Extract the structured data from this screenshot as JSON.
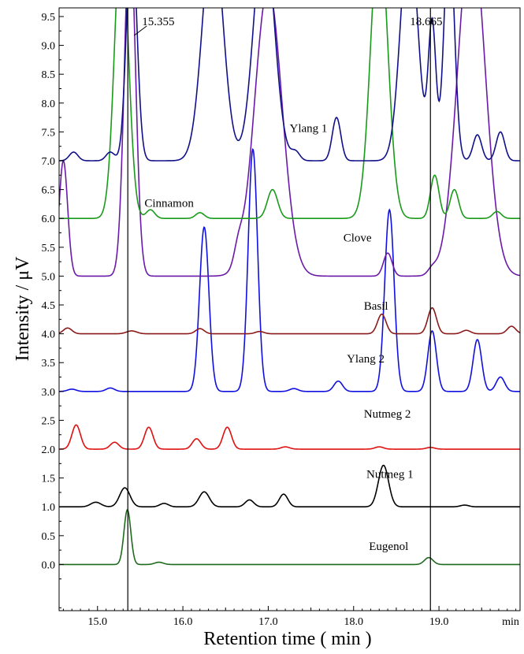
{
  "chart_data": {
    "type": "line",
    "title": "",
    "xlabel": "Retention time ( min )",
    "ylabel": "Intensity / μV",
    "xlim": [
      14.55,
      19.95
    ],
    "ylim": [
      -0.8,
      9.65
    ],
    "x_ticks": [
      {
        "value": 15.0,
        "label": "15.0"
      },
      {
        "value": 16.0,
        "label": "16.0"
      },
      {
        "value": 17.0,
        "label": "17.0"
      },
      {
        "value": 18.0,
        "label": "18.0"
      },
      {
        "value": 19.0,
        "label": "19.0"
      }
    ],
    "x_unit_label": "min",
    "y_ticks": [
      {
        "value": 0.0,
        "label": "0.0"
      },
      {
        "value": 0.5,
        "label": "0.5"
      },
      {
        "value": 1.0,
        "label": "1.0"
      },
      {
        "value": 1.5,
        "label": "1.5"
      },
      {
        "value": 2.0,
        "label": "2.0"
      },
      {
        "value": 2.5,
        "label": "2.5"
      },
      {
        "value": 3.0,
        "label": "3.0"
      },
      {
        "value": 3.5,
        "label": "3.5"
      },
      {
        "value": 4.0,
        "label": "4.0"
      },
      {
        "value": 4.5,
        "label": "4.5"
      },
      {
        "value": 5.0,
        "label": "5.0"
      },
      {
        "value": 5.5,
        "label": "5.5"
      },
      {
        "value": 6.0,
        "label": "6.0"
      },
      {
        "value": 6.5,
        "label": "6.5"
      },
      {
        "value": 7.0,
        "label": "7.0"
      },
      {
        "value": 7.5,
        "label": "7.5"
      },
      {
        "value": 8.0,
        "label": "8.0"
      },
      {
        "value": 8.5,
        "label": "8.5"
      },
      {
        "value": 9.0,
        "label": "9.0"
      },
      {
        "value": 9.5,
        "label": "9.5"
      }
    ],
    "grid": false,
    "legend": "none",
    "annotations": [
      {
        "label": "15.355",
        "x": 15.355
      },
      {
        "label": "18.665",
        "x": 18.9
      }
    ],
    "series": [
      {
        "name": "Eugenol",
        "color": "#1e6b1e",
        "baseline": 0.0,
        "label_at": [
          18.18,
          0.25
        ],
        "peaks": [
          [
            15.35,
            0.95,
            0.04
          ],
          [
            15.72,
            0.04,
            0.05
          ],
          [
            18.88,
            0.12,
            0.05
          ]
        ]
      },
      {
        "name": "Nutmeg 1",
        "color": "#000000",
        "baseline": 1.0,
        "label_at": [
          18.15,
          1.5
        ],
        "peaks": [
          [
            14.98,
            0.08,
            0.06
          ],
          [
            15.32,
            0.33,
            0.06
          ],
          [
            15.78,
            0.06,
            0.05
          ],
          [
            16.25,
            0.26,
            0.06
          ],
          [
            16.78,
            0.12,
            0.05
          ],
          [
            17.18,
            0.22,
            0.05
          ],
          [
            18.35,
            0.72,
            0.06
          ],
          [
            19.3,
            0.03,
            0.05
          ]
        ]
      },
      {
        "name": "Nutmeg 2",
        "color": "#e01010",
        "baseline": 2.0,
        "label_at": [
          18.12,
          2.55
        ],
        "peaks": [
          [
            14.75,
            0.42,
            0.05
          ],
          [
            15.2,
            0.12,
            0.05
          ],
          [
            15.6,
            0.38,
            0.05
          ],
          [
            16.16,
            0.18,
            0.05
          ],
          [
            16.52,
            0.38,
            0.05
          ],
          [
            17.2,
            0.04,
            0.05
          ],
          [
            18.3,
            0.04,
            0.05
          ],
          [
            18.9,
            0.03,
            0.05
          ]
        ]
      },
      {
        "name": "Ylang 2",
        "color": "#1010e0",
        "baseline": 3.0,
        "label_at": [
          17.92,
          3.5
        ],
        "peaks": [
          [
            14.7,
            0.04,
            0.05
          ],
          [
            15.15,
            0.06,
            0.05
          ],
          [
            16.25,
            2.85,
            0.055
          ],
          [
            16.82,
            4.2,
            0.055
          ],
          [
            17.3,
            0.05,
            0.05
          ],
          [
            17.82,
            0.18,
            0.05
          ],
          [
            18.42,
            3.15,
            0.055
          ],
          [
            18.92,
            1.05,
            0.05
          ],
          [
            19.45,
            0.9,
            0.05
          ],
          [
            19.72,
            0.25,
            0.05
          ]
        ]
      },
      {
        "name": "Basil",
        "color": "#8b1a1a",
        "baseline": 4.0,
        "label_at": [
          18.12,
          4.42
        ],
        "peaks": [
          [
            14.65,
            0.1,
            0.05
          ],
          [
            15.4,
            0.05,
            0.06
          ],
          [
            16.2,
            0.09,
            0.05
          ],
          [
            16.9,
            0.04,
            0.05
          ],
          [
            18.33,
            0.34,
            0.05
          ],
          [
            18.92,
            0.45,
            0.05
          ],
          [
            19.32,
            0.06,
            0.05
          ],
          [
            19.85,
            0.13,
            0.05
          ]
        ]
      },
      {
        "name": "Clove",
        "color": "#6a1aa8",
        "baseline": 5.0,
        "label_at": [
          17.88,
          5.6
        ],
        "peaks": [
          [
            14.6,
            2.0,
            0.05
          ],
          [
            15.38,
            6.0,
            0.065
          ],
          [
            16.65,
            0.3,
            0.05
          ],
          [
            17.0,
            5.0,
            0.16
          ],
          [
            18.4,
            0.4,
            0.05
          ],
          [
            18.92,
            0.1,
            0.05
          ],
          [
            19.38,
            6.0,
            0.16
          ]
        ]
      },
      {
        "name": "Cinnamon",
        "color": "#1a9a1a",
        "baseline": 6.0,
        "label_at": [
          15.55,
          6.2
        ],
        "peaks": [
          [
            15.28,
            5.0,
            0.08
          ],
          [
            15.62,
            0.15,
            0.05
          ],
          [
            16.2,
            0.1,
            0.05
          ],
          [
            17.05,
            0.5,
            0.06
          ],
          [
            18.3,
            5.0,
            0.1
          ],
          [
            18.95,
            0.75,
            0.05
          ],
          [
            19.18,
            0.5,
            0.05
          ],
          [
            19.68,
            0.12,
            0.05
          ]
        ]
      },
      {
        "name": "Ylang 1",
        "color": "#10108a",
        "baseline": 7.0,
        "label_at": [
          17.25,
          7.5
        ],
        "peaks": [
          [
            14.72,
            0.15,
            0.05
          ],
          [
            15.15,
            0.15,
            0.05
          ],
          [
            15.4,
            4.0,
            0.06
          ],
          [
            16.35,
            4.0,
            0.12
          ],
          [
            16.95,
            4.0,
            0.12
          ],
          [
            17.32,
            0.15,
            0.05
          ],
          [
            17.8,
            0.75,
            0.05
          ],
          [
            18.65,
            4.0,
            0.1
          ],
          [
            18.92,
            2.35,
            0.045
          ],
          [
            19.12,
            4.0,
            0.06
          ],
          [
            19.45,
            0.45,
            0.05
          ],
          [
            19.72,
            0.5,
            0.05
          ]
        ]
      }
    ]
  }
}
